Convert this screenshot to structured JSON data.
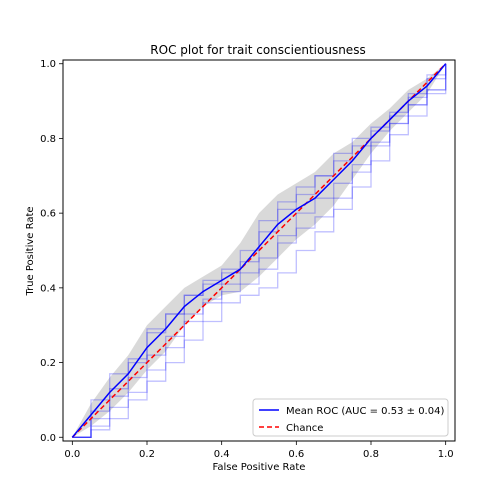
{
  "chart_data": {
    "type": "line",
    "title": "ROC plot for trait conscientiousness",
    "xlabel": "False Positive Rate",
    "ylabel": "True Positive Rate",
    "xlim": [
      -0.025,
      1.025
    ],
    "ylim": [
      -0.01,
      1.01
    ],
    "xticks": [
      0.0,
      0.2,
      0.4,
      0.6,
      0.8,
      1.0
    ],
    "yticks": [
      0.0,
      0.2,
      0.4,
      0.6,
      0.8,
      1.0
    ],
    "xtick_labels": [
      "0.0",
      "0.2",
      "0.4",
      "0.6",
      "0.8",
      "1.0"
    ],
    "ytick_labels": [
      "0.0",
      "0.2",
      "0.4",
      "0.6",
      "0.8",
      "1.0"
    ],
    "legend_position": "lower-right",
    "colors": {
      "mean": "#0000ff",
      "chance": "#ff0000",
      "folds": "#0000ff",
      "band": "#bfbfbf"
    },
    "series": [
      {
        "name": "Mean ROC (AUC = 0.53 ± 0.04)",
        "style": "solid",
        "x": [
          0.0,
          0.05,
          0.1,
          0.15,
          0.2,
          0.25,
          0.3,
          0.35,
          0.4,
          0.45,
          0.5,
          0.55,
          0.6,
          0.65,
          0.7,
          0.75,
          0.8,
          0.85,
          0.9,
          0.95,
          1.0
        ],
        "y": [
          0.0,
          0.06,
          0.12,
          0.17,
          0.24,
          0.29,
          0.35,
          0.39,
          0.42,
          0.45,
          0.51,
          0.57,
          0.61,
          0.64,
          0.69,
          0.74,
          0.8,
          0.85,
          0.9,
          0.94,
          1.0
        ]
      },
      {
        "name": "Chance",
        "style": "dashed",
        "x": [
          0.0,
          1.0
        ],
        "y": [
          0.0,
          1.0
        ]
      }
    ],
    "band": {
      "x": [
        0.0,
        0.05,
        0.1,
        0.15,
        0.2,
        0.25,
        0.3,
        0.35,
        0.4,
        0.45,
        0.5,
        0.55,
        0.6,
        0.65,
        0.7,
        0.75,
        0.8,
        0.85,
        0.9,
        0.95,
        1.0
      ],
      "upper": [
        0.0,
        0.09,
        0.16,
        0.22,
        0.3,
        0.35,
        0.4,
        0.43,
        0.46,
        0.52,
        0.6,
        0.65,
        0.68,
        0.71,
        0.76,
        0.79,
        0.84,
        0.88,
        0.93,
        0.96,
        1.0
      ],
      "lower": [
        0.0,
        0.03,
        0.07,
        0.12,
        0.18,
        0.23,
        0.3,
        0.35,
        0.38,
        0.39,
        0.43,
        0.48,
        0.53,
        0.57,
        0.62,
        0.69,
        0.76,
        0.82,
        0.87,
        0.92,
        1.0
      ]
    },
    "fold_curves": [
      {
        "x": [
          0.0,
          0.05,
          0.1,
          0.15,
          0.2,
          0.25,
          0.3,
          0.35,
          0.4,
          0.45,
          0.5,
          0.55,
          0.6,
          0.65,
          0.7,
          0.75,
          0.8,
          0.85,
          0.9,
          0.95,
          1.0
        ],
        "y": [
          0.0,
          0.07,
          0.13,
          0.2,
          0.28,
          0.33,
          0.38,
          0.42,
          0.45,
          0.5,
          0.58,
          0.63,
          0.67,
          0.7,
          0.74,
          0.78,
          0.82,
          0.86,
          0.91,
          0.96,
          1.0
        ]
      },
      {
        "x": [
          0.0,
          0.05,
          0.1,
          0.15,
          0.2,
          0.25,
          0.3,
          0.35,
          0.4,
          0.45,
          0.5,
          0.55,
          0.6,
          0.65,
          0.7,
          0.75,
          0.8,
          0.85,
          0.9,
          0.95,
          1.0
        ],
        "y": [
          0.0,
          0.03,
          0.08,
          0.12,
          0.18,
          0.24,
          0.31,
          0.36,
          0.39,
          0.41,
          0.45,
          0.52,
          0.56,
          0.59,
          0.64,
          0.71,
          0.78,
          0.84,
          0.89,
          0.93,
          1.0
        ]
      },
      {
        "x": [
          0.0,
          0.05,
          0.1,
          0.15,
          0.2,
          0.25,
          0.3,
          0.35,
          0.4,
          0.45,
          0.5,
          0.55,
          0.6,
          0.65,
          0.7,
          0.75,
          0.8,
          0.85,
          0.9,
          0.95,
          1.0
        ],
        "y": [
          0.0,
          0.1,
          0.17,
          0.21,
          0.29,
          0.33,
          0.38,
          0.41,
          0.44,
          0.47,
          0.55,
          0.61,
          0.65,
          0.7,
          0.76,
          0.8,
          0.83,
          0.87,
          0.92,
          0.97,
          1.0
        ]
      },
      {
        "x": [
          0.0,
          0.05,
          0.1,
          0.15,
          0.2,
          0.25,
          0.3,
          0.35,
          0.4,
          0.45,
          0.5,
          0.55,
          0.6,
          0.65,
          0.7,
          0.75,
          0.8,
          0.85,
          0.9,
          0.95,
          1.0
        ],
        "y": [
          0.0,
          0.05,
          0.11,
          0.16,
          0.22,
          0.27,
          0.33,
          0.37,
          0.41,
          0.44,
          0.48,
          0.54,
          0.6,
          0.64,
          0.68,
          0.73,
          0.79,
          0.84,
          0.89,
          0.93,
          1.0
        ]
      },
      {
        "x": [
          0.0,
          0.05,
          0.1,
          0.15,
          0.2,
          0.25,
          0.3,
          0.35,
          0.4,
          0.45,
          0.5,
          0.55,
          0.6,
          0.65,
          0.7,
          0.75,
          0.8,
          0.85,
          0.9,
          0.95,
          1.0
        ],
        "y": [
          0.0,
          0.02,
          0.05,
          0.1,
          0.15,
          0.2,
          0.26,
          0.31,
          0.36,
          0.38,
          0.4,
          0.44,
          0.5,
          0.55,
          0.61,
          0.67,
          0.74,
          0.81,
          0.86,
          0.92,
          1.0
        ]
      }
    ]
  }
}
